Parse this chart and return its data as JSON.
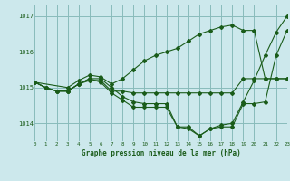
{
  "background_color": "#cce8ec",
  "grid_color": "#88bbbb",
  "line_color": "#1a5c1a",
  "title": "Graphe pression niveau de la mer (hPa)",
  "xlim": [
    0,
    23
  ],
  "ylim": [
    1013.5,
    1017.3
  ],
  "yticks": [
    1014,
    1015,
    1016,
    1017
  ],
  "xticks": [
    0,
    1,
    2,
    3,
    4,
    5,
    6,
    7,
    8,
    9,
    10,
    11,
    12,
    13,
    14,
    15,
    16,
    17,
    18,
    19,
    20,
    21,
    22,
    23
  ],
  "series": [
    {
      "x": [
        0,
        3,
        4,
        5,
        6,
        7,
        8,
        9,
        10,
        11,
        12,
        13,
        14,
        15,
        16,
        17,
        18,
        19,
        20,
        21,
        22,
        23
      ],
      "y": [
        1015.15,
        1015.0,
        1015.2,
        1015.35,
        1015.3,
        1015.1,
        1015.25,
        1015.5,
        1015.75,
        1015.9,
        1016.0,
        1016.1,
        1016.3,
        1016.5,
        1016.6,
        1016.7,
        1016.75,
        1016.6,
        1016.6,
        1015.25,
        1015.25,
        1015.25
      ]
    },
    {
      "x": [
        0,
        1,
        2,
        3,
        4,
        5,
        6,
        7,
        8,
        9,
        10,
        11,
        12,
        13,
        14,
        15,
        16,
        17,
        18,
        19,
        20,
        21,
        22,
        23
      ],
      "y": [
        1015.15,
        1015.0,
        1014.9,
        1014.9,
        1015.1,
        1015.25,
        1015.25,
        1015.0,
        1014.75,
        1014.6,
        1014.55,
        1014.55,
        1014.55,
        1013.9,
        1013.85,
        1013.65,
        1013.85,
        1013.95,
        1014.0,
        1014.6,
        1015.2,
        1015.9,
        1016.55,
        1017.0
      ]
    },
    {
      "x": [
        0,
        1,
        2,
        3,
        4,
        5,
        6,
        7,
        8,
        9,
        10,
        11,
        12,
        13,
        14,
        15,
        16,
        17,
        18,
        19,
        20,
        21,
        22,
        23
      ],
      "y": [
        1015.15,
        1015.0,
        1014.9,
        1014.9,
        1015.1,
        1015.25,
        1015.15,
        1014.85,
        1014.65,
        1014.45,
        1014.45,
        1014.45,
        1014.45,
        1013.9,
        1013.9,
        1013.65,
        1013.85,
        1013.9,
        1013.9,
        1014.55,
        1014.55,
        1014.6,
        1015.9,
        1016.6
      ]
    },
    {
      "x": [
        0,
        1,
        2,
        3,
        4,
        5,
        6,
        7,
        8,
        9,
        10,
        11,
        12,
        13,
        14,
        15,
        16,
        17,
        18,
        19,
        20,
        21,
        22,
        23
      ],
      "y": [
        1015.15,
        1015.0,
        1014.9,
        1014.9,
        1015.1,
        1015.2,
        1015.2,
        1014.9,
        1014.9,
        1014.85,
        1014.85,
        1014.85,
        1014.85,
        1014.85,
        1014.85,
        1014.85,
        1014.85,
        1014.85,
        1014.85,
        1015.25,
        1015.25,
        1015.25,
        1015.25,
        1015.25
      ]
    }
  ]
}
